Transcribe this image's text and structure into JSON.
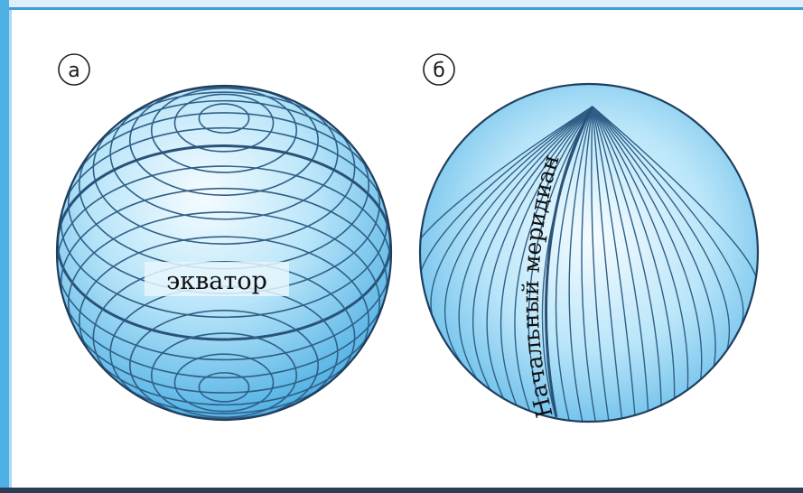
{
  "globes": [
    {
      "id": "a",
      "marker": "а",
      "line_label": "экватор",
      "line_type": "parallels"
    },
    {
      "id": "b",
      "marker": "б",
      "line_label": "Начальный меридиан",
      "line_type": "meridians"
    }
  ],
  "colors": {
    "globe_light": "#f4fbff",
    "globe_mid": "#8fd3f5",
    "globe_dark": "#3aa6e0",
    "line": "#2f5f86",
    "outline": "#1f3f60",
    "frame_top": "#3b9fd8",
    "frame_left": "#4fb0e6"
  }
}
